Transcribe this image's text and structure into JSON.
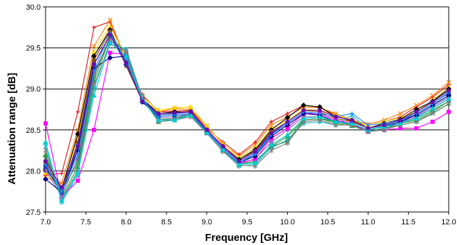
{
  "chart_data": {
    "type": "line",
    "title": "",
    "xlabel": "Frequency [GHz]",
    "ylabel": "Attenuation range [dB]",
    "xlim": [
      7.0,
      12.0
    ],
    "ylim": [
      27.5,
      30.0
    ],
    "x_ticks": [
      "7.0",
      "7.5",
      "8.0",
      "8.5",
      "9.0",
      "9.5",
      "10.0",
      "10.5",
      "11.0",
      "11.5",
      "12.0"
    ],
    "y_ticks": [
      "27.5",
      "28.0",
      "28.5",
      "29.0",
      "29.5",
      "30.0"
    ],
    "grid": "horizontal",
    "legend": "none",
    "x": [
      7.0,
      7.2,
      7.4,
      7.6,
      7.8,
      8.0,
      8.2,
      8.4,
      8.6,
      8.8,
      9.0,
      9.2,
      9.4,
      9.6,
      9.8,
      10.0,
      10.2,
      10.4,
      10.6,
      10.8,
      11.0,
      11.2,
      11.4,
      11.6,
      11.8,
      12.0
    ],
    "series": [
      {
        "color": "#e31a1c",
        "marker": "plus",
        "values": [
          27.95,
          27.97,
          28.72,
          29.75,
          29.82,
          29.32,
          28.93,
          28.72,
          28.73,
          28.74,
          28.52,
          28.35,
          28.2,
          28.35,
          28.6,
          28.7,
          28.8,
          28.78,
          28.68,
          28.6,
          28.55,
          28.6,
          28.66,
          28.78,
          28.9,
          29.05
        ]
      },
      {
        "color": "#ff7f0e",
        "marker": "x",
        "values": [
          27.92,
          27.85,
          28.5,
          29.52,
          29.84,
          29.35,
          28.92,
          28.72,
          28.76,
          28.75,
          28.55,
          28.32,
          28.18,
          28.32,
          28.56,
          28.66,
          28.78,
          28.77,
          28.7,
          28.62,
          28.57,
          28.62,
          28.7,
          28.8,
          28.92,
          29.08
        ]
      },
      {
        "color": "#ffd700",
        "marker": "triangle",
        "values": [
          27.98,
          27.8,
          28.4,
          29.45,
          29.76,
          29.38,
          28.9,
          28.74,
          28.77,
          28.78,
          28.55,
          28.33,
          28.16,
          28.28,
          28.52,
          28.62,
          28.75,
          28.74,
          28.68,
          28.62,
          28.55,
          28.6,
          28.65,
          28.72,
          28.86,
          29.02
        ]
      },
      {
        "color": "#000000",
        "marker": "diamond",
        "values": [
          28.02,
          27.78,
          28.45,
          29.4,
          29.72,
          29.3,
          28.88,
          28.7,
          28.72,
          28.72,
          28.5,
          28.3,
          28.14,
          28.26,
          28.5,
          28.65,
          28.8,
          28.78,
          28.66,
          28.62,
          28.52,
          28.58,
          28.63,
          28.75,
          28.85,
          29.0
        ]
      },
      {
        "color": "#8b4513",
        "marker": "circle",
        "values": [
          28.1,
          27.75,
          28.35,
          29.35,
          29.7,
          29.28,
          28.85,
          28.7,
          28.71,
          28.73,
          28.5,
          28.3,
          28.12,
          28.25,
          28.48,
          28.6,
          28.74,
          28.72,
          28.64,
          28.6,
          28.52,
          28.56,
          28.62,
          28.72,
          28.84,
          28.98
        ]
      },
      {
        "color": "#1f3ba8",
        "marker": "square",
        "values": [
          28.05,
          27.72,
          28.3,
          29.3,
          29.65,
          29.3,
          28.86,
          28.68,
          28.7,
          28.72,
          28.5,
          28.28,
          28.1,
          28.22,
          28.45,
          28.58,
          28.72,
          28.7,
          28.62,
          28.58,
          28.5,
          28.55,
          28.6,
          28.7,
          28.82,
          28.95
        ]
      },
      {
        "color": "#2ca02c",
        "marker": "triangle",
        "values": [
          28.2,
          27.68,
          28.05,
          29.1,
          29.62,
          29.45,
          28.88,
          28.6,
          28.62,
          28.68,
          28.48,
          28.26,
          28.08,
          28.12,
          28.3,
          28.42,
          28.62,
          28.64,
          28.58,
          28.55,
          28.48,
          28.52,
          28.58,
          28.62,
          28.74,
          28.85
        ]
      },
      {
        "color": "#17becf",
        "marker": "star",
        "values": [
          28.3,
          27.62,
          27.95,
          29.0,
          29.58,
          29.48,
          28.9,
          28.62,
          28.64,
          28.7,
          28.47,
          28.24,
          28.06,
          28.08,
          28.28,
          28.38,
          28.58,
          28.6,
          28.56,
          28.68,
          28.5,
          28.55,
          28.6,
          28.65,
          28.76,
          28.88
        ]
      },
      {
        "color": "#9467bd",
        "marker": "circle",
        "values": [
          28.0,
          27.7,
          28.15,
          29.2,
          29.6,
          29.38,
          28.86,
          28.64,
          28.66,
          28.7,
          28.48,
          28.28,
          28.08,
          28.15,
          28.35,
          28.5,
          28.66,
          28.66,
          28.6,
          28.56,
          28.48,
          28.52,
          28.58,
          28.66,
          28.78,
          28.9
        ]
      },
      {
        "color": "#ff00ff",
        "marker": "square",
        "values": [
          28.58,
          27.68,
          27.88,
          28.5,
          29.44,
          29.42,
          28.86,
          28.62,
          28.64,
          28.68,
          28.5,
          28.28,
          28.1,
          28.14,
          28.4,
          28.52,
          28.7,
          28.7,
          28.62,
          28.58,
          28.48,
          28.5,
          28.52,
          28.52,
          28.6,
          28.72
        ]
      },
      {
        "color": "#00008b",
        "marker": "diamond",
        "values": [
          27.9,
          27.74,
          28.25,
          29.25,
          29.38,
          29.4,
          28.84,
          28.66,
          28.68,
          28.7,
          28.48,
          28.26,
          28.1,
          28.18,
          28.42,
          28.56,
          28.7,
          28.68,
          28.6,
          28.58,
          28.5,
          28.54,
          28.6,
          28.68,
          28.8,
          28.92
        ]
      },
      {
        "color": "#2e8b57",
        "marker": "x",
        "values": [
          28.15,
          27.76,
          28.1,
          29.15,
          29.64,
          29.44,
          28.88,
          28.62,
          28.64,
          28.68,
          28.46,
          28.25,
          28.08,
          28.1,
          28.3,
          28.36,
          28.62,
          28.64,
          28.6,
          28.56,
          28.48,
          28.52,
          28.56,
          28.6,
          28.7,
          28.82
        ]
      },
      {
        "color": "#808080",
        "marker": "star",
        "values": [
          28.25,
          27.66,
          28.0,
          29.05,
          29.55,
          29.46,
          28.88,
          28.6,
          28.62,
          28.66,
          28.46,
          28.24,
          28.07,
          28.06,
          28.25,
          28.34,
          28.6,
          28.62,
          28.56,
          28.56,
          28.48,
          28.5,
          28.56,
          28.6,
          28.72,
          28.85
        ]
      },
      {
        "color": "#1e90ff",
        "marker": "plus",
        "values": [
          28.08,
          27.74,
          28.2,
          29.22,
          29.68,
          29.36,
          28.87,
          28.66,
          28.68,
          28.7,
          28.49,
          28.27,
          28.1,
          28.2,
          28.44,
          28.58,
          28.72,
          28.7,
          28.66,
          28.7,
          28.56,
          28.58,
          28.62,
          28.7,
          28.82,
          28.96
        ]
      },
      {
        "color": "#00ced1",
        "marker": "triangle",
        "values": [
          28.35,
          27.64,
          27.98,
          28.92,
          29.56,
          29.4,
          28.86,
          28.62,
          28.62,
          28.68,
          28.47,
          28.26,
          28.08,
          28.1,
          28.32,
          28.44,
          28.64,
          28.66,
          28.6,
          28.58,
          28.5,
          28.54,
          28.58,
          28.64,
          28.76,
          28.88
        ]
      },
      {
        "color": "#6a0dad",
        "marker": "circle",
        "values": [
          28.12,
          27.8,
          28.3,
          29.3,
          29.66,
          29.32,
          28.85,
          28.7,
          28.71,
          28.72,
          28.5,
          28.3,
          28.12,
          28.24,
          28.46,
          28.6,
          28.74,
          28.74,
          28.66,
          28.62,
          28.52,
          28.56,
          28.62,
          28.72,
          28.84,
          28.98
        ]
      }
    ]
  }
}
